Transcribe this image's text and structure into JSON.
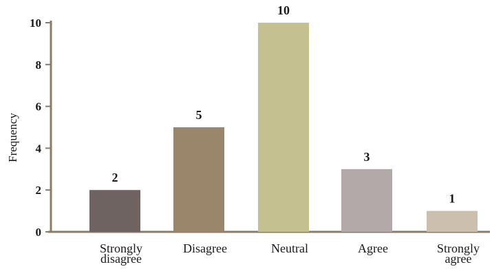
{
  "chart_data": {
    "type": "bar",
    "categories": [
      [
        "Strongly",
        "disagree"
      ],
      [
        "Disagree"
      ],
      [
        "Neutral"
      ],
      [
        "Agree"
      ],
      [
        "Strongly",
        "agree"
      ]
    ],
    "values": [
      2,
      5,
      10,
      3,
      1
    ],
    "data_labels": [
      "2",
      "5",
      "10",
      "3",
      "1"
    ],
    "bar_colors": [
      "#6f6362",
      "#9a876b",
      "#c5c08f",
      "#b3a9a8",
      "#cdbfae"
    ],
    "title": "",
    "xlabel": "",
    "ylabel": "Frequency",
    "ylim": [
      0,
      10
    ],
    "yticks": [
      0,
      2,
      4,
      6,
      8,
      10
    ],
    "grid": false,
    "axis_color": "#8c7b65"
  }
}
